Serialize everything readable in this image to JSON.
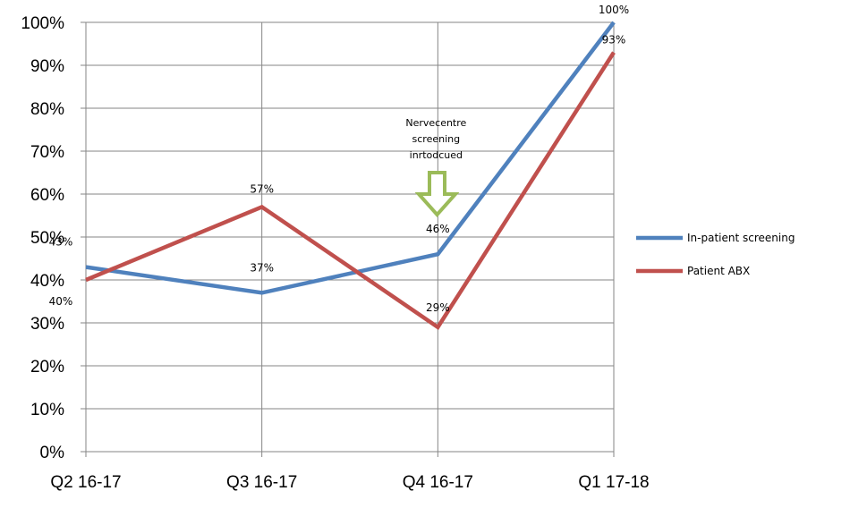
{
  "chart_data": {
    "type": "line",
    "categories": [
      "Q2 16-17",
      "Q3 16-17",
      "Q4 16-17",
      "Q1 17-18"
    ],
    "ylim": [
      0,
      100
    ],
    "y_ticks": [
      "0%",
      "10%",
      "20%",
      "30%",
      "40%",
      "50%",
      "60%",
      "70%",
      "80%",
      "90%",
      "100%"
    ],
    "grid": true,
    "legend_position": "right",
    "series": [
      {
        "name": "In-patient screening",
        "color": "#4f81bd",
        "values": [
          43,
          37,
          46,
          100
        ],
        "labels": [
          "43%",
          "37%",
          "46%",
          "100%"
        ]
      },
      {
        "name": "Patient ABX",
        "color": "#c0504d",
        "values": [
          40,
          57,
          29,
          93
        ],
        "labels": [
          "40%",
          "57%",
          "29%",
          "93%"
        ]
      }
    ],
    "annotation": {
      "lines": [
        "Nervecentre",
        "screening",
        "inrtodcued"
      ],
      "category_index": 2,
      "arrow_color": "#9bbb59"
    }
  }
}
